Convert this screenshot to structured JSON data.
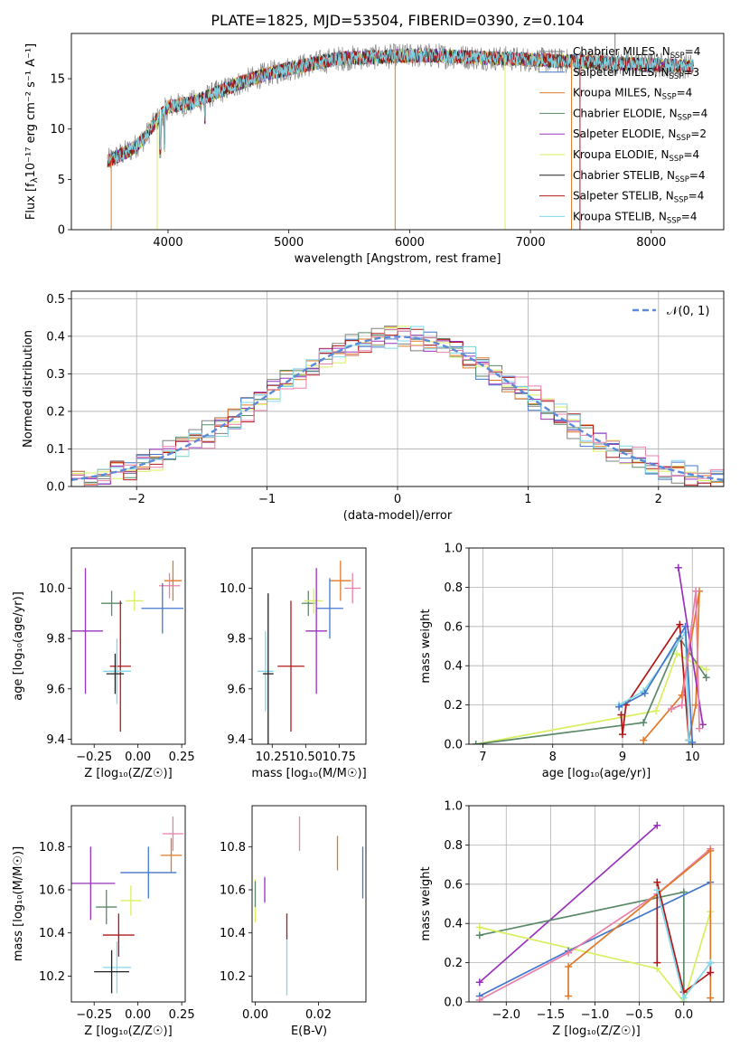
{
  "colors": {
    "chab_miles": "#808080",
    "salp_miles": "#4477cc",
    "krou_miles": "#e07a2a",
    "chab_elodie": "#5a8a6a",
    "salp_elodie": "#9933bb",
    "krou_elodie": "#d8f060",
    "chab_stelib": "#222222",
    "salp_stelib": "#b01818",
    "krou_stelib": "#80d8e8",
    "pink": "#e880a8",
    "normal_line": "#5b8ad8"
  },
  "chart_data": [
    {
      "id": "spectrum",
      "type": "line",
      "title": "PLATE=1825, MJD=53504, FIBERID=0390, z=0.104",
      "xlabel": "wavelength [Angstrom, rest frame]",
      "ylabel_main": "Flux [f",
      "ylabel_sub": "λ",
      "ylabel_rest": "10⁻¹⁷ erg cm⁻² s⁻¹ A⁻¹]",
      "xlim": [
        3200,
        8600
      ],
      "ylim": [
        0,
        19.5
      ],
      "xticks": [
        4000,
        5000,
        6000,
        7000,
        8000
      ],
      "yticks": [
        0,
        5,
        10,
        15
      ],
      "grid": false,
      "legend_position": "right",
      "x": [
        3500,
        3600,
        3700,
        3800,
        3900,
        4000,
        4200,
        4400,
        4600,
        4800,
        5000,
        5200,
        5400,
        5600,
        5800,
        6000,
        6200,
        6400,
        6600,
        6800,
        7000,
        7200,
        7400,
        7600,
        7800,
        8000,
        8200,
        8350
      ],
      "values": [
        6.8,
        7.4,
        8.0,
        9.0,
        10.8,
        12.2,
        12.6,
        13.6,
        14.6,
        15.4,
        16.0,
        16.5,
        17.0,
        17.1,
        17.2,
        17.3,
        17.3,
        17.2,
        17.1,
        17.0,
        16.9,
        16.8,
        16.7,
        16.6,
        16.5,
        16.4,
        16.3,
        16.2
      ],
      "series": [
        {
          "name": "Chabrier MILES, N",
          "sub": "SSP",
          "suffix": "=4",
          "color_key": "chab_miles"
        },
        {
          "name": "Salpeter MILES, N",
          "sub": "SSP",
          "suffix": "=3",
          "color_key": "salp_miles"
        },
        {
          "name": "Kroupa MILES, N",
          "sub": "SSP",
          "suffix": "=4",
          "color_key": "krou_miles"
        },
        {
          "name": "Chabrier ELODIE, N",
          "sub": "SSP",
          "suffix": "=4",
          "color_key": "chab_elodie"
        },
        {
          "name": "Salpeter ELODIE, N",
          "sub": "SSP",
          "suffix": "=2",
          "color_key": "salp_elodie"
        },
        {
          "name": "Kroupa ELODIE, N",
          "sub": "SSP",
          "suffix": "=4",
          "color_key": "krou_elodie"
        },
        {
          "name": "Chabrier STELIB, N",
          "sub": "SSP",
          "suffix": "=4",
          "color_key": "chab_stelib"
        },
        {
          "name": "Salpeter STELIB, N",
          "sub": "SSP",
          "suffix": "=4",
          "color_key": "salp_stelib"
        },
        {
          "name": "Kroupa STELIB, N",
          "sub": "SSP",
          "suffix": "=4",
          "color_key": "krou_stelib"
        }
      ]
    },
    {
      "id": "residuals",
      "type": "line",
      "xlabel": "(data-model)/error",
      "ylabel": "Normed distribution",
      "xlim": [
        -2.5,
        2.5
      ],
      "ylim": [
        0,
        0.52
      ],
      "xticks": [
        -2,
        -1,
        0,
        1,
        2
      ],
      "xtick_labels": [
        "−2",
        "−1",
        "0",
        "1",
        "2"
      ],
      "yticks": [
        0.0,
        0.1,
        0.2,
        0.3,
        0.4,
        0.5
      ],
      "ytick_labels": [
        "0.0",
        "0.1",
        "0.2",
        "0.3",
        "0.4",
        "0.5"
      ],
      "grid": true,
      "legend_position": "top-right",
      "legend_label": "𝒩(0, 1)",
      "hist_colors": [
        "chab_miles",
        "salp_miles",
        "krou_miles",
        "chab_elodie",
        "salp_elodie",
        "krou_elodie",
        "salp_stelib",
        "krou_stelib",
        "pink"
      ]
    },
    {
      "id": "age_vs_Z",
      "type": "scatter",
      "xlabel": "Z [log₁₀(Z/Z☉)]",
      "ylabel": "age  [log₁₀(age/yr)]",
      "xlim": [
        -0.38,
        0.27
      ],
      "ylim": [
        9.38,
        10.16
      ],
      "xticks": [
        -0.25,
        0.0,
        0.25
      ],
      "xtick_labels": [
        "−0.25",
        "0.00",
        "0.25"
      ],
      "yticks": [
        9.4,
        9.6,
        9.8,
        10.0
      ],
      "ytick_labels": [
        "9.4",
        "9.6",
        "9.8",
        "10.0"
      ],
      "points": [
        {
          "x": 0.2,
          "y": 10.03,
          "xerr": 0.05,
          "yerr": 0.08,
          "color_key": "krou_miles"
        },
        {
          "x": 0.18,
          "y": 10.01,
          "xerr": 0.06,
          "yerr": 0.05,
          "color_key": "pink"
        },
        {
          "x": 0.14,
          "y": 9.92,
          "xerr": 0.12,
          "yerr": 0.1,
          "color_key": "salp_miles"
        },
        {
          "x": -0.15,
          "y": 9.94,
          "xerr": 0.06,
          "yerr": 0.05,
          "color_key": "chab_elodie"
        },
        {
          "x": -0.02,
          "y": 9.95,
          "xerr": 0.05,
          "yerr": 0.04,
          "color_key": "krou_elodie"
        },
        {
          "x": -0.3,
          "y": 9.83,
          "xerr": 0.1,
          "yerr": 0.25,
          "color_key": "salp_elodie"
        },
        {
          "x": -0.1,
          "y": 9.69,
          "xerr": 0.06,
          "yerr": 0.26,
          "color_key": "salp_stelib"
        },
        {
          "x": -0.12,
          "y": 9.67,
          "xerr": 0.08,
          "yerr": 0.13,
          "color_key": "krou_stelib"
        },
        {
          "x": -0.13,
          "y": 9.66,
          "xerr": 0.05,
          "yerr": 0.08,
          "color_key": "chab_stelib"
        }
      ]
    },
    {
      "id": "age_vs_mass",
      "type": "scatter",
      "xlabel": "mass [log₁₀(M/M☉)]",
      "xlim": [
        10.1,
        10.95
      ],
      "ylim": [
        9.38,
        10.16
      ],
      "xticks": [
        10.25,
        10.5,
        10.75
      ],
      "xtick_labels": [
        "10.25",
        "10.50",
        "10.75"
      ],
      "yticks": [
        9.4,
        9.6,
        9.8,
        10.0
      ],
      "ytick_labels": [
        "9.4",
        "9.6",
        "9.8",
        "10.0"
      ],
      "points": [
        {
          "x": 10.76,
          "y": 10.03,
          "xerr": 0.08,
          "yerr": 0.08,
          "color_key": "krou_miles"
        },
        {
          "x": 10.85,
          "y": 10.0,
          "xerr": 0.06,
          "yerr": 0.06,
          "color_key": "pink"
        },
        {
          "x": 10.68,
          "y": 9.92,
          "xerr": 0.1,
          "yerr": 0.12,
          "color_key": "salp_miles"
        },
        {
          "x": 10.52,
          "y": 9.94,
          "xerr": 0.05,
          "yerr": 0.05,
          "color_key": "chab_elodie"
        },
        {
          "x": 10.56,
          "y": 9.95,
          "xerr": 0.07,
          "yerr": 0.05,
          "color_key": "krou_elodie"
        },
        {
          "x": 10.58,
          "y": 9.83,
          "xerr": 0.08,
          "yerr": 0.25,
          "color_key": "salp_elodie"
        },
        {
          "x": 10.39,
          "y": 9.69,
          "xerr": 0.1,
          "yerr": 0.26,
          "color_key": "salp_stelib"
        },
        {
          "x": 10.2,
          "y": 9.67,
          "xerr": 0.06,
          "yerr": 0.16,
          "color_key": "krou_stelib"
        },
        {
          "x": 10.22,
          "y": 9.66,
          "xerr": 0.04,
          "yerr": 0.32,
          "color_key": "chab_stelib"
        }
      ]
    },
    {
      "id": "massweight_vs_age",
      "type": "line",
      "xlabel": "age  [log₁₀(age/yr)]",
      "ylabel": "mass weight",
      "xlim": [
        6.8,
        10.45
      ],
      "ylim": [
        0,
        1.0
      ],
      "xticks": [
        7,
        8,
        9,
        10
      ],
      "yticks": [
        0.0,
        0.2,
        0.4,
        0.6,
        0.8,
        1.0
      ],
      "ytick_labels": [
        "0.0",
        "0.2",
        "0.4",
        "0.6",
        "0.8",
        "1.0"
      ],
      "grid": true,
      "series": [
        {
          "color_key": "krou_elodie",
          "x": [
            6.9,
            9.48,
            9.78,
            10.2
          ],
          "y": [
            0.0,
            0.17,
            0.46,
            0.38
          ]
        },
        {
          "color_key": "chab_elodie",
          "x": [
            6.9,
            9.3,
            9.82,
            10.2
          ],
          "y": [
            0.0,
            0.11,
            0.54,
            0.34
          ]
        },
        {
          "color_key": "krou_miles",
          "x": [
            9.3,
            9.85,
            10.1,
            10.05,
            9.95
          ],
          "y": [
            0.02,
            0.25,
            0.78,
            0.2,
            0.02
          ]
        },
        {
          "color_key": "salp_stelib",
          "x": [
            8.98,
            9.0,
            9.05,
            9.82,
            9.95
          ],
          "y": [
            0.15,
            0.05,
            0.2,
            0.61,
            0.02
          ]
        },
        {
          "color_key": "krou_stelib",
          "x": [
            8.95,
            9.3,
            9.9,
            9.95
          ],
          "y": [
            0.2,
            0.27,
            0.57,
            0.02
          ]
        },
        {
          "color_key": "salp_miles",
          "x": [
            8.95,
            9.32,
            9.9,
            10.0
          ],
          "y": [
            0.19,
            0.26,
            0.6,
            0.01
          ]
        },
        {
          "color_key": "salp_elodie",
          "x": [
            9.8,
            10.15
          ],
          "y": [
            0.9,
            0.1
          ]
        },
        {
          "color_key": "pink",
          "x": [
            9.7,
            9.85,
            10.05,
            10.1
          ],
          "y": [
            0.18,
            0.2,
            0.78,
            0.08
          ]
        }
      ]
    },
    {
      "id": "mass_vs_Z",
      "type": "scatter",
      "xlabel": "Z [log₁₀(Z/Z☉)]",
      "ylabel": "mass [log₁₀(M/M☉)]",
      "xlim": [
        -0.38,
        0.27
      ],
      "ylim": [
        10.08,
        10.99
      ],
      "xticks": [
        -0.25,
        0.0,
        0.25
      ],
      "xtick_labels": [
        "−0.25",
        "0.00",
        "0.25"
      ],
      "yticks": [
        10.2,
        10.4,
        10.6,
        10.8
      ],
      "ytick_labels": [
        "10.2",
        "10.4",
        "10.6",
        "10.8"
      ],
      "points": [
        {
          "x": 0.2,
          "y": 10.86,
          "xerr": 0.06,
          "yerr": 0.08,
          "color_key": "pink"
        },
        {
          "x": 0.19,
          "y": 10.76,
          "xerr": 0.06,
          "yerr": 0.08,
          "color_key": "krou_miles"
        },
        {
          "x": 0.06,
          "y": 10.68,
          "xerr": 0.16,
          "yerr": 0.12,
          "color_key": "salp_miles"
        },
        {
          "x": -0.27,
          "y": 10.63,
          "xerr": 0.14,
          "yerr": 0.17,
          "color_key": "salp_elodie"
        },
        {
          "x": -0.18,
          "y": 10.52,
          "xerr": 0.06,
          "yerr": 0.08,
          "color_key": "chab_elodie"
        },
        {
          "x": -0.04,
          "y": 10.55,
          "xerr": 0.06,
          "yerr": 0.07,
          "color_key": "krou_elodie"
        },
        {
          "x": -0.11,
          "y": 10.39,
          "xerr": 0.09,
          "yerr": 0.1,
          "color_key": "salp_stelib"
        },
        {
          "x": -0.12,
          "y": 10.24,
          "xerr": 0.08,
          "yerr": 0.12,
          "color_key": "krou_stelib"
        },
        {
          "x": -0.15,
          "y": 10.22,
          "xerr": 0.1,
          "yerr": 0.1,
          "color_key": "chab_stelib"
        }
      ]
    },
    {
      "id": "mass_vs_ebv",
      "type": "scatter",
      "xlabel": "E(B-V)",
      "xlim": [
        -0.001,
        0.035
      ],
      "ylim": [
        10.08,
        10.99
      ],
      "xticks": [
        0.0,
        0.02
      ],
      "xtick_labels": [
        "0.00",
        "0.02"
      ],
      "yticks": [
        10.2,
        10.4,
        10.6,
        10.8
      ],
      "ytick_labels": [
        "10.2",
        "10.4",
        "10.6",
        "10.8"
      ],
      "points": [
        {
          "x": 0.0,
          "y": 10.55,
          "yerr": 0.1,
          "color_key": "krou_elodie"
        },
        {
          "x": 0.0,
          "y": 10.58,
          "yerr": 0.06,
          "color_key": "chab_elodie"
        },
        {
          "x": 0.003,
          "y": 10.6,
          "yerr": 0.06,
          "color_key": "salp_elodie"
        },
        {
          "x": 0.01,
          "y": 10.25,
          "yerr": 0.14,
          "color_key": "krou_stelib"
        },
        {
          "x": 0.01,
          "y": 10.43,
          "yerr": 0.06,
          "color_key": "salp_stelib"
        },
        {
          "x": 0.014,
          "y": 10.86,
          "yerr": 0.08,
          "color_key": "pink"
        },
        {
          "x": 0.026,
          "y": 10.77,
          "yerr": 0.08,
          "color_key": "krou_miles"
        },
        {
          "x": 0.034,
          "y": 10.68,
          "yerr": 0.12,
          "color_key": "salp_miles"
        }
      ]
    },
    {
      "id": "massweight_vs_Z",
      "type": "line",
      "xlabel": "Z [log₁₀(Z/Z☉)]",
      "ylabel": "mass weight",
      "xlim": [
        -2.42,
        0.45
      ],
      "ylim": [
        0,
        1.0
      ],
      "xticks": [
        -2.0,
        -1.5,
        -1.0,
        -0.5,
        0.0
      ],
      "xtick_labels": [
        "−2.0",
        "−1.5",
        "−1.0",
        "−0.5",
        "0.0"
      ],
      "yticks": [
        0.0,
        0.2,
        0.4,
        0.6,
        0.8,
        1.0
      ],
      "ytick_labels": [
        "0.0",
        "0.2",
        "0.4",
        "0.6",
        "0.8",
        "1.0"
      ],
      "grid": true,
      "series": [
        {
          "color_key": "salp_elodie",
          "x": [
            -2.3,
            -0.3
          ],
          "y": [
            0.1,
            0.9
          ]
        },
        {
          "color_key": "chab_elodie",
          "x": [
            -2.3,
            0.0,
            0.0
          ],
          "y": [
            0.34,
            0.56,
            0.0
          ]
        },
        {
          "color_key": "krou_elodie",
          "x": [
            -2.3,
            -0.3,
            0.0,
            0.3
          ],
          "y": [
            0.38,
            0.17,
            0.0,
            0.46
          ]
        },
        {
          "color_key": "salp_miles",
          "x": [
            -2.3,
            -1.3,
            0.3
          ],
          "y": [
            0.03,
            0.26,
            0.61
          ]
        },
        {
          "color_key": "pink",
          "x": [
            -2.3,
            -1.3,
            -0.3,
            0.3
          ],
          "y": [
            0.01,
            0.25,
            0.55,
            0.78
          ]
        },
        {
          "color_key": "krou_miles",
          "x": [
            -1.3,
            -1.3,
            0.3,
            0.3
          ],
          "y": [
            0.03,
            0.18,
            0.77,
            0.02
          ]
        },
        {
          "color_key": "salp_stelib",
          "x": [
            -0.3,
            -0.3,
            0.0,
            0.3,
            0.3
          ],
          "y": [
            0.2,
            0.61,
            0.05,
            0.15,
            0.2
          ]
        },
        {
          "color_key": "krou_stelib",
          "x": [
            -0.3,
            0.0,
            0.3
          ],
          "y": [
            0.57,
            0.02,
            0.2
          ]
        }
      ]
    }
  ]
}
